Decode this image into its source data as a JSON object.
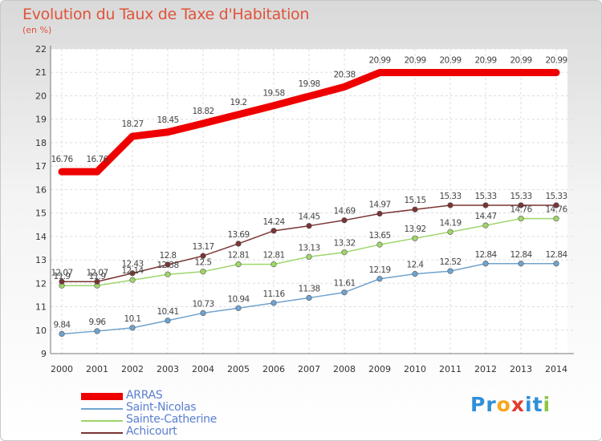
{
  "title": "Evolution du Taux de Taxe d'Habitation",
  "subtitle": "(en %)",
  "logo": {
    "text": "Proxiti",
    "colors": [
      "#2f8fd8",
      "#2f8fd8",
      "#f6a71c",
      "#e23b2e",
      "#2f8fd8",
      "#2f8fd8",
      "#8dc63f"
    ]
  },
  "chart_data": {
    "type": "line",
    "x": [
      2000,
      2001,
      2002,
      2003,
      2004,
      2005,
      2006,
      2007,
      2008,
      2009,
      2010,
      2011,
      2012,
      2013,
      2014
    ],
    "ylim": [
      9,
      22
    ],
    "yticks": [
      9,
      10,
      11,
      12,
      13,
      14,
      15,
      16,
      17,
      18,
      19,
      20,
      21,
      22
    ],
    "grid": true,
    "legend_position": "bottom-left",
    "series": [
      {
        "name": "ARRAS",
        "color": "#ee0000",
        "values": [
          16.76,
          16.76,
          18.27,
          18.45,
          18.82,
          19.2,
          19.58,
          19.98,
          20.38,
          20.99,
          20.99,
          20.99,
          20.99,
          20.99,
          20.99
        ],
        "labels": [
          "16.76",
          "16.76",
          "18.27",
          "18.45",
          "18.82",
          "19.2",
          "19.58",
          "19.98",
          "20.38",
          "20.99",
          "20.99",
          "20.99",
          "20.99",
          "20.99",
          "20.99"
        ]
      },
      {
        "name": "Saint-Nicolas",
        "color": "#6fa3cf",
        "values": [
          9.84,
          9.96,
          10.1,
          10.41,
          10.73,
          10.94,
          11.16,
          11.38,
          11.61,
          12.19,
          12.4,
          12.52,
          12.84,
          12.84,
          12.84
        ],
        "labels": [
          "9.84",
          "9.96",
          "10.1",
          "10.41",
          "10.73",
          "10.94",
          "11.16",
          "11.38",
          "11.61",
          "12.19",
          "12.4",
          "12.52",
          "12.84",
          "12.84",
          "12.84"
        ]
      },
      {
        "name": "Sainte-Catherine",
        "color": "#9fd66a",
        "values": [
          11.9,
          11.9,
          12.14,
          12.38,
          12.5,
          12.81,
          12.81,
          13.13,
          13.32,
          13.65,
          13.92,
          14.19,
          14.47,
          14.76,
          14.76
        ],
        "labels": [
          "11.9",
          "11.9",
          "12.14",
          "12.38",
          "12.5",
          "12.81",
          "12.81",
          "13.13",
          "13.32",
          "13.65",
          "13.92",
          "14.19",
          "14.47",
          "14.76",
          "14.76"
        ]
      },
      {
        "name": "Achicourt",
        "color": "#7a3434",
        "values": [
          12.07,
          12.07,
          12.43,
          12.8,
          13.17,
          13.69,
          14.24,
          14.45,
          14.69,
          14.97,
          15.15,
          15.33,
          15.33,
          15.33,
          15.33
        ],
        "labels": [
          "12.07",
          "12.07",
          "12.43",
          "12.8",
          "13.17",
          "13.69",
          "14.24",
          "14.45",
          "14.69",
          "14.97",
          "15.15",
          "15.33",
          "15.33",
          "15.33",
          "15.33"
        ]
      }
    ]
  }
}
